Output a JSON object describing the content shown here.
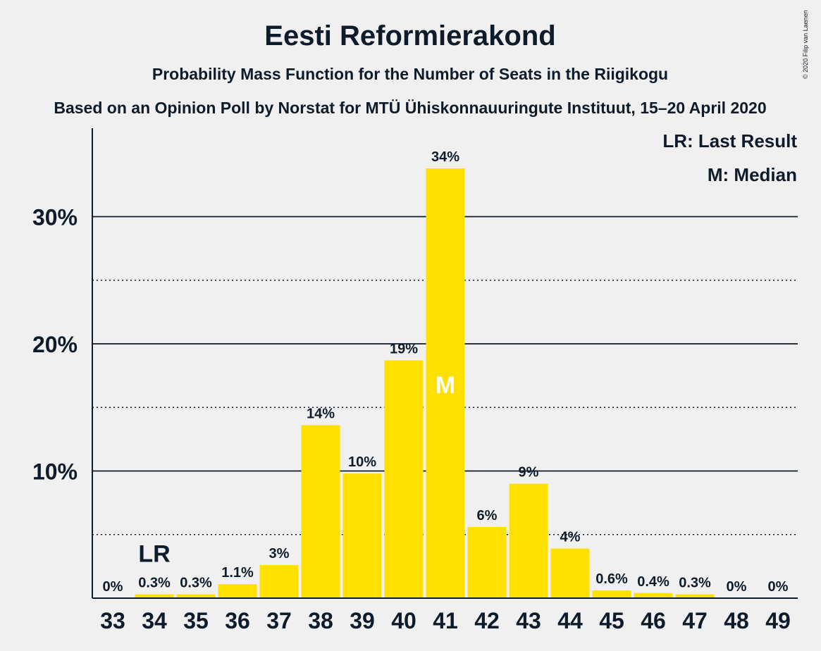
{
  "chart_data": {
    "type": "bar",
    "title": "Eesti Reformierakond",
    "subtitle": "Probability Mass Function for the Number of Seats in the Riigikogu",
    "subtitle2": "Based on an Opinion Poll by Norstat for MTÜ Ühiskonnauuringute Instituut, 15–20 April 2020",
    "copyright": "© 2020 Filip van Laenen",
    "categories": [
      "33",
      "34",
      "35",
      "36",
      "37",
      "38",
      "39",
      "40",
      "41",
      "42",
      "43",
      "44",
      "45",
      "46",
      "47",
      "48",
      "49"
    ],
    "values": [
      0,
      0.3,
      0.3,
      1.1,
      2.6,
      13.6,
      9.8,
      18.7,
      33.8,
      5.6,
      9.0,
      3.9,
      0.6,
      0.4,
      0.3,
      0,
      0
    ],
    "data_labels": [
      "0%",
      "0.3%",
      "0.3%",
      "1.1%",
      "3%",
      "14%",
      "10%",
      "19%",
      "34%",
      "6%",
      "9%",
      "4%",
      "0.6%",
      "0.4%",
      "0.3%",
      "0%",
      "0%"
    ],
    "ylim": [
      0,
      37
    ],
    "yticks": [
      10,
      20,
      30
    ],
    "ytick_labels": [
      "10%",
      "20%",
      "30%"
    ],
    "minor_gridlines": [
      5,
      15,
      25
    ],
    "last_result": {
      "category": "34",
      "marker": "LR"
    },
    "median": {
      "category": "41",
      "marker": "M"
    },
    "legend": [
      "LR: Last Result",
      "M: Median"
    ],
    "legend_position": "top-right",
    "colors": {
      "bar": "#ffe000",
      "text": "#0d1b2a",
      "background": "#f0f0f0",
      "median_marker": "#ffffff"
    }
  }
}
